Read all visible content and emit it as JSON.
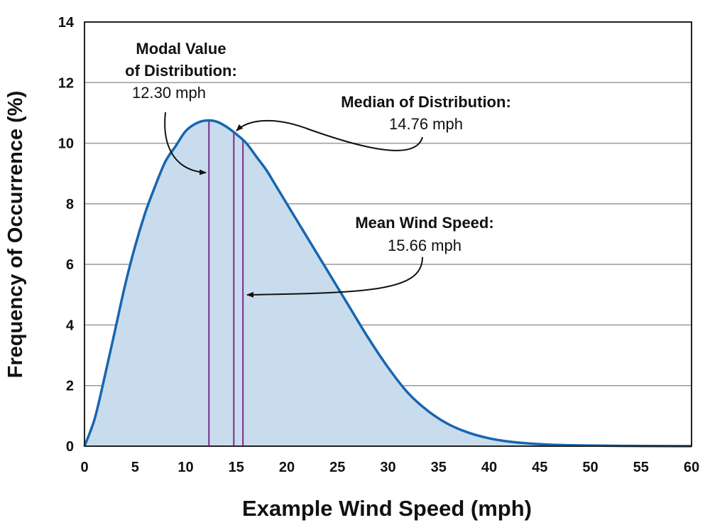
{
  "chart_data": {
    "type": "area",
    "xlabel": "Example Wind Speed (mph)",
    "ylabel": "Frequency of Occurrence (%)",
    "xlim": [
      0,
      60
    ],
    "ylim": [
      0,
      14
    ],
    "xticks": [
      0,
      5,
      10,
      15,
      20,
      25,
      30,
      35,
      40,
      45,
      50,
      55,
      60
    ],
    "yticks": [
      0,
      2,
      4,
      6,
      8,
      10,
      12,
      14
    ],
    "grid": "horizontal",
    "series": [
      {
        "x": [
          0,
          1,
          2,
          3,
          4,
          5,
          6,
          7,
          8,
          9,
          10,
          11,
          12,
          13,
          14,
          15,
          16,
          17,
          18,
          19,
          20,
          22,
          24,
          26,
          28,
          30,
          32,
          34,
          36,
          38,
          40,
          42,
          44,
          46,
          48,
          50,
          55,
          60
        ],
        "values": [
          0,
          0.9,
          2.3,
          3.8,
          5.3,
          6.6,
          7.7,
          8.6,
          9.4,
          9.9,
          10.4,
          10.65,
          10.75,
          10.72,
          10.55,
          10.3,
          10.0,
          9.55,
          9.1,
          8.55,
          8.0,
          6.9,
          5.8,
          4.7,
          3.6,
          2.6,
          1.75,
          1.15,
          0.72,
          0.44,
          0.26,
          0.15,
          0.09,
          0.05,
          0.03,
          0.02,
          0.005,
          0
        ]
      }
    ],
    "markers": [
      {
        "x": 12.3,
        "label": "Modal Value",
        "label2": "of Distribution:",
        "value": "12.30 mph"
      },
      {
        "x": 14.76,
        "label": "Median of Distribution:",
        "value": "14.76 mph"
      },
      {
        "x": 15.66,
        "label": "Mean Wind Speed:",
        "value": "15.66 mph"
      }
    ],
    "colors": {
      "line": "#1766b0",
      "fill": "#c9dcee",
      "marker": "#7a2a8c",
      "grid": "#9a9a9a",
      "axis": "#222222"
    }
  }
}
